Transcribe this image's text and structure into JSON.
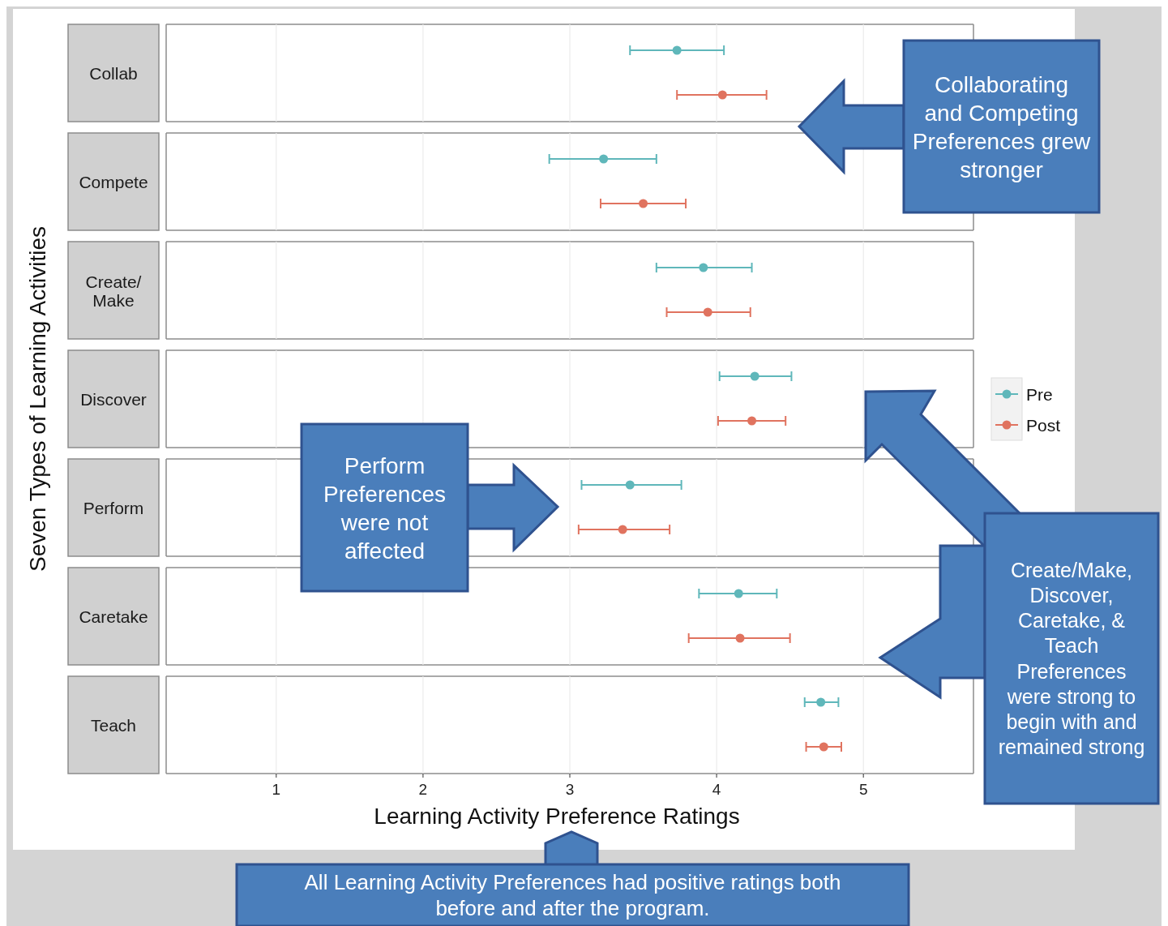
{
  "chart_data": {
    "type": "scatter",
    "orientation": "horizontal",
    "xlabel": "Learning Activity  Preference Ratings",
    "ylabel": "Seven Types of Learning Activities",
    "categories": [
      "Collab",
      "Compete",
      "Create/\nMake",
      "Discover",
      "Perform",
      "Caretake",
      "Teach"
    ],
    "series": [
      {
        "name": "Pre",
        "color": "#5fb7ba",
        "values": [
          3.73,
          3.23,
          3.91,
          4.26,
          3.41,
          4.15,
          4.71
        ],
        "errors": [
          [
            3.41,
            4.05
          ],
          [
            2.86,
            3.59
          ],
          [
            3.59,
            4.24
          ],
          [
            4.02,
            4.51
          ],
          [
            3.08,
            3.76
          ],
          [
            3.88,
            4.41
          ],
          [
            4.6,
            4.83
          ]
        ]
      },
      {
        "name": "Post",
        "color": "#e0735f",
        "values": [
          4.04,
          3.5,
          3.94,
          4.24,
          3.36,
          4.16,
          4.73
        ],
        "errors": [
          [
            3.73,
            4.34
          ],
          [
            3.21,
            3.79
          ],
          [
            3.66,
            4.23
          ],
          [
            4.01,
            4.47
          ],
          [
            3.06,
            3.68
          ],
          [
            3.81,
            4.5
          ],
          [
            4.61,
            4.85
          ]
        ]
      }
    ],
    "xlim": [
      0.25,
      5.75
    ],
    "xticks": [
      1,
      2,
      3,
      4,
      5
    ],
    "grid": "x",
    "legend": "right",
    "marker": "circle",
    "annotations": [
      "Collaborating and Competing Preferences grew stronger",
      "Perform Preferences were not affected",
      "Create/Make, Discover, Caretake, & Teach Preferences were strong to begin with and remained strong",
      "All Learning Activity Preferences had positive ratings both before and after the program."
    ]
  }
}
